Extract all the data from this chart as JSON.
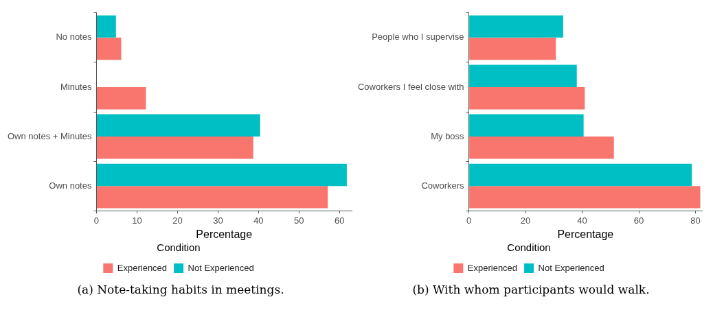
{
  "chart_data": [
    {
      "type": "bar",
      "orientation": "horizontal",
      "title": "(a) Note-taking habits in meetings.",
      "xlabel": "Percentage",
      "legend_title": "Condition",
      "legend": "bottom",
      "grid": false,
      "categories": [
        "No notes",
        "Minutes",
        "Own notes + Minutes",
        "Own notes"
      ],
      "series": [
        {
          "name": "Experienced",
          "color": "#f8766d",
          "values": [
            6.1,
            12.2,
            38.7,
            57.1
          ]
        },
        {
          "name": "Not Experienced",
          "color": "#00bfc4",
          "values": [
            4.8,
            null,
            40.4,
            61.8
          ]
        }
      ],
      "xlim": [
        0,
        63
      ],
      "xticks": [
        0,
        10,
        20,
        30,
        40,
        50,
        60
      ]
    },
    {
      "type": "bar",
      "orientation": "horizontal",
      "title": "(b) With whom participants would walk.",
      "xlabel": "Percentage",
      "legend_title": "Condition",
      "legend": "bottom",
      "grid": false,
      "categories": [
        "People who I supervise",
        "Coworkers I feel close with",
        "My boss",
        "Coworkers"
      ],
      "series": [
        {
          "name": "Experienced",
          "color": "#f8766d",
          "values": [
            30.7,
            40.9,
            51.2,
            81.7
          ]
        },
        {
          "name": "Not Experienced",
          "color": "#00bfc4",
          "values": [
            33.3,
            38.1,
            40.5,
            78.7
          ]
        }
      ],
      "xlim": [
        0,
        82.3
      ],
      "xticks": [
        0,
        20,
        40,
        60,
        80
      ]
    }
  ]
}
